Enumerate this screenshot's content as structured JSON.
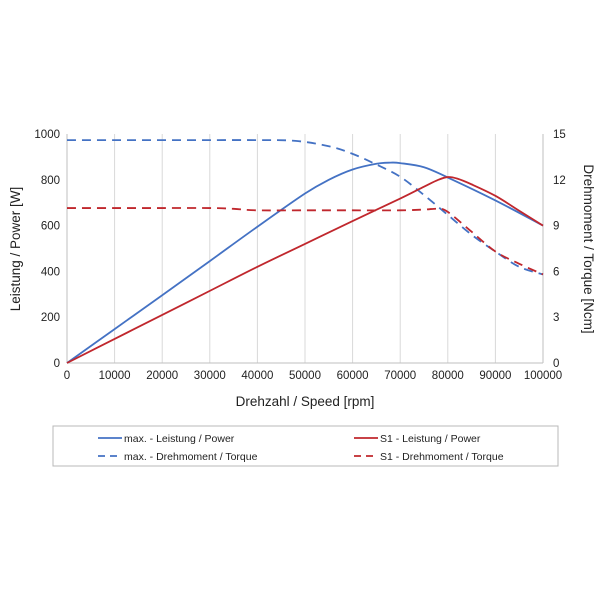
{
  "chart_data": {
    "type": "line",
    "xlabel": "Drehzahl / Speed [rpm]",
    "ylabel_left": "Leistung / Power [W]",
    "ylabel_right": "Drehmoment / Torque [Ncm]",
    "xlim": [
      0,
      100000
    ],
    "ylim_left": [
      0,
      1000
    ],
    "ylim_right": [
      0,
      15
    ],
    "x_ticks": [
      0,
      10000,
      20000,
      30000,
      40000,
      50000,
      60000,
      70000,
      80000,
      90000,
      100000
    ],
    "y_left_ticks": [
      0,
      200,
      400,
      600,
      800,
      1000
    ],
    "y_right_ticks": [
      0,
      3,
      6,
      9,
      12,
      15
    ],
    "grid": "vertical",
    "legend_placement": "bottom",
    "series": [
      {
        "name": "max. - Leistung / Power",
        "axis": "left",
        "color": "#4472c4",
        "dash": "solid",
        "x": [
          0,
          10000,
          20000,
          30000,
          40000,
          50000,
          55000,
          60000,
          65000,
          68000,
          70000,
          75000,
          80000,
          90000,
          100000
        ],
        "y": [
          0,
          148,
          296,
          445,
          595,
          740,
          800,
          845,
          870,
          875,
          873,
          855,
          810,
          710,
          600
        ]
      },
      {
        "name": "max. - Drehmoment / Torque",
        "axis": "right",
        "color": "#4472c4",
        "dash": "dashed",
        "x": [
          0,
          10000,
          20000,
          30000,
          40000,
          48000,
          55000,
          60000,
          65000,
          70000,
          75000,
          80000,
          85000,
          90000,
          95000,
          100000
        ],
        "y": [
          14.6,
          14.6,
          14.6,
          14.6,
          14.6,
          14.55,
          14.2,
          13.7,
          13.0,
          12.2,
          11.0,
          9.7,
          8.4,
          7.3,
          6.3,
          5.8
        ]
      },
      {
        "name": "S1 - Leistung / Power",
        "axis": "left",
        "color": "#c0272d",
        "dash": "solid",
        "x": [
          0,
          10000,
          20000,
          30000,
          40000,
          50000,
          60000,
          70000,
          75000,
          78000,
          80000,
          82000,
          85000,
          90000,
          95000,
          100000
        ],
        "y": [
          0,
          105,
          210,
          315,
          420,
          520,
          620,
          718,
          770,
          800,
          812,
          805,
          780,
          730,
          665,
          600
        ]
      },
      {
        "name": "S1 - Drehmoment / Torque",
        "axis": "right",
        "color": "#c0272d",
        "dash": "dashed",
        "x": [
          0,
          10000,
          20000,
          30000,
          35000,
          40000,
          50000,
          60000,
          70000,
          75000,
          78000,
          80000,
          85000,
          90000,
          95000,
          100000
        ],
        "y": [
          10.15,
          10.15,
          10.15,
          10.15,
          10.1,
          10.0,
          10.0,
          10.0,
          10.0,
          10.05,
          10.1,
          9.9,
          8.6,
          7.3,
          6.5,
          5.8
        ]
      }
    ]
  }
}
